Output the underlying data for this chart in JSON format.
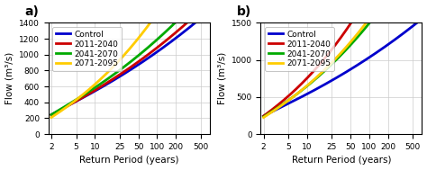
{
  "x_ticks": [
    2,
    5,
    10,
    25,
    50,
    100,
    200,
    500
  ],
  "xlim": [
    1.8,
    700
  ],
  "panel_a": {
    "label": "a)",
    "ylim": [
      0,
      1400
    ],
    "yticks": [
      0,
      200,
      400,
      600,
      800,
      1000,
      1200,
      1400
    ],
    "ylabel": "Flow (m³/s)",
    "xlabel": "Return Period (years)",
    "series": [
      {
        "label": "Control",
        "color": "#0000cc",
        "lognorm": {
          "mu": 5.5,
          "sigma": 0.62
        }
      },
      {
        "label": "2011-2040",
        "color": "#cc0000",
        "lognorm": {
          "mu": 5.48,
          "sigma": 0.65
        }
      },
      {
        "label": "2041-2070",
        "color": "#00aa00",
        "lognorm": {
          "mu": 5.5,
          "sigma": 0.68
        }
      },
      {
        "label": "2071-2095",
        "color": "#ffcc00",
        "lognorm": {
          "mu": 5.35,
          "sigma": 0.85
        }
      }
    ]
  },
  "panel_b": {
    "label": "b)",
    "ylim": [
      0,
      1500
    ],
    "yticks": [
      0,
      500,
      1000,
      1500
    ],
    "ylabel": "Flow (m³/s)",
    "xlabel": "Return Period (years)",
    "series": [
      {
        "label": "Control",
        "color": "#0000cc",
        "lognorm": {
          "mu": 5.5,
          "sigma": 0.62
        }
      },
      {
        "label": "2011-2040",
        "color": "#cc0000",
        "lognorm": {
          "mu": 5.5,
          "sigma": 0.88
        }
      },
      {
        "label": "2041-2070",
        "color": "#00aa00",
        "lognorm": {
          "mu": 5.45,
          "sigma": 0.8
        }
      },
      {
        "label": "2071-2095",
        "color": "#ffcc00",
        "lognorm": {
          "mu": 5.42,
          "sigma": 0.83
        }
      }
    ]
  },
  "linewidth": 2.0,
  "background_color": "#ffffff",
  "grid_color": "#cccccc"
}
